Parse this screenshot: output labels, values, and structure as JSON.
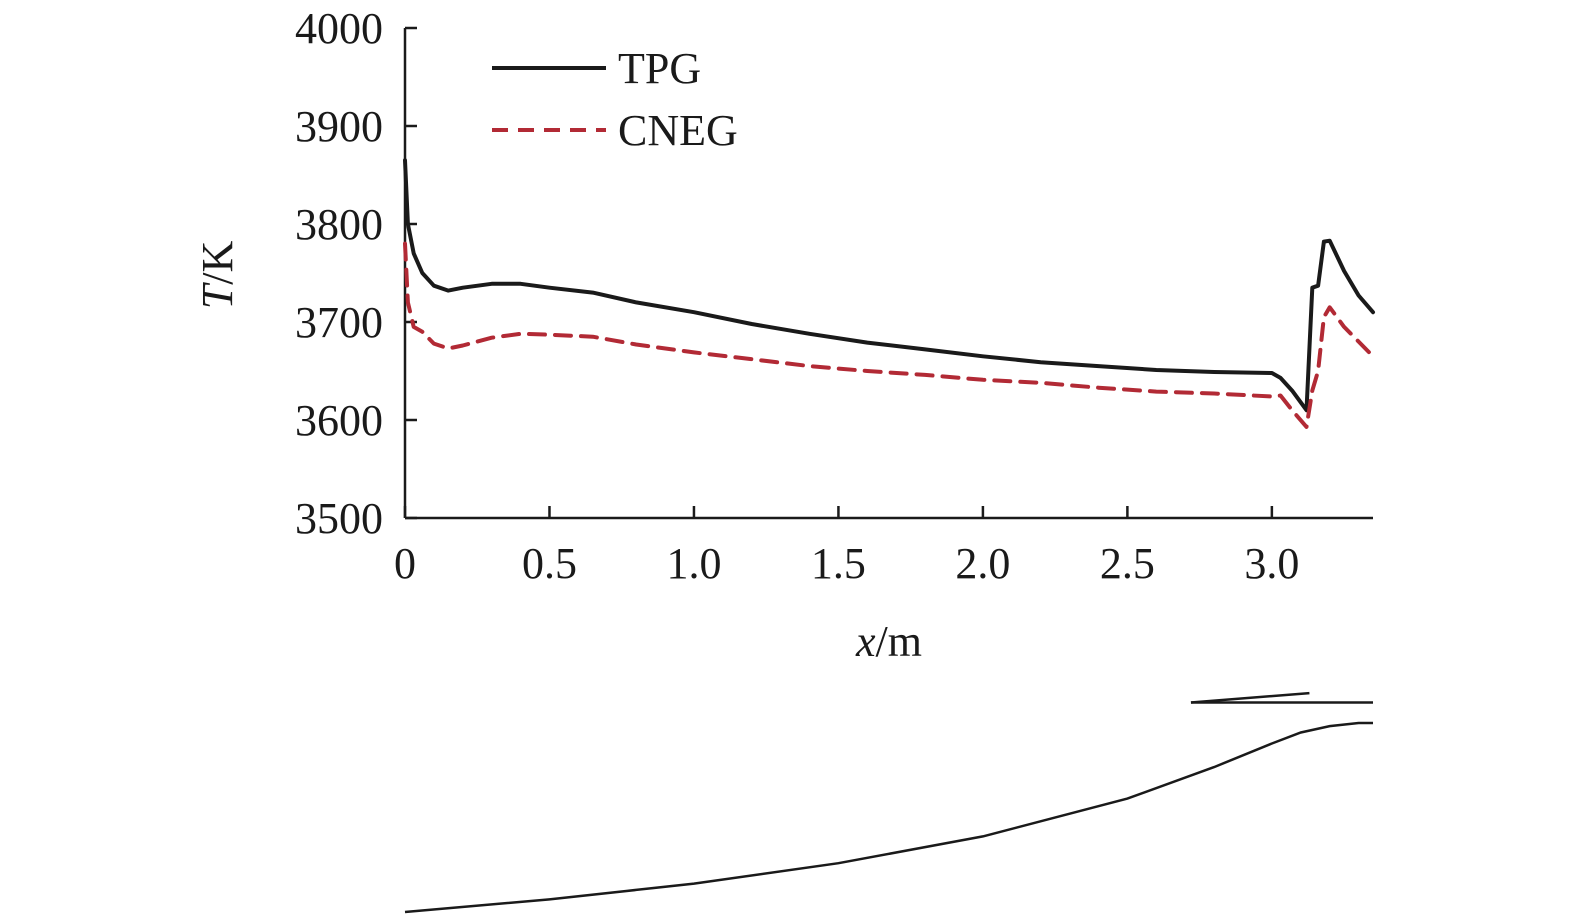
{
  "chart_data": {
    "type": "line",
    "title": "",
    "xlabel_italic": "x",
    "xlabel_unit": "/m",
    "ylabel_italic": "T",
    "ylabel_unit": "/K",
    "xlim": [
      0,
      3.35
    ],
    "ylim": [
      3500,
      4000
    ],
    "x_ticks": [
      0,
      0.5,
      1.0,
      1.5,
      2.0,
      2.5,
      3.0
    ],
    "x_tick_labels": [
      "0",
      "0.5",
      "1.0",
      "1.5",
      "2.0",
      "2.5",
      "3.0"
    ],
    "y_ticks": [
      3500,
      3600,
      3700,
      3800,
      3900,
      4000
    ],
    "y_tick_labels": [
      "3500",
      "3600",
      "3700",
      "3800",
      "3900",
      "4000"
    ],
    "grid": false,
    "legend_position": "top-left",
    "series": [
      {
        "name": "TPG",
        "color": "#1a1a1a",
        "dash": "solid",
        "x": [
          0,
          0.01,
          0.03,
          0.06,
          0.1,
          0.15,
          0.2,
          0.3,
          0.4,
          0.5,
          0.65,
          0.8,
          1.0,
          1.2,
          1.4,
          1.6,
          1.8,
          2.0,
          2.2,
          2.4,
          2.6,
          2.8,
          3.0,
          3.03,
          3.07,
          3.12,
          3.14,
          3.16,
          3.18,
          3.2,
          3.25,
          3.3,
          3.35
        ],
        "values": [
          3865,
          3800,
          3770,
          3750,
          3737,
          3732,
          3735,
          3739,
          3739,
          3735,
          3730,
          3720,
          3710,
          3698,
          3688,
          3679,
          3672,
          3665,
          3659,
          3655,
          3651,
          3649,
          3648,
          3643,
          3630,
          3610,
          3735,
          3737,
          3782,
          3783,
          3752,
          3727,
          3710
        ]
      },
      {
        "name": "CNEG",
        "color": "#b22a35",
        "dash": "dashed",
        "x": [
          0,
          0.01,
          0.03,
          0.06,
          0.1,
          0.15,
          0.2,
          0.3,
          0.4,
          0.5,
          0.65,
          0.8,
          1.0,
          1.2,
          1.4,
          1.6,
          1.8,
          2.0,
          2.2,
          2.4,
          2.6,
          2.8,
          3.0,
          3.03,
          3.07,
          3.12,
          3.14,
          3.16,
          3.18,
          3.2,
          3.25,
          3.3,
          3.35
        ],
        "values": [
          3780,
          3720,
          3695,
          3690,
          3678,
          3673,
          3676,
          3684,
          3688,
          3687,
          3685,
          3677,
          3669,
          3662,
          3655,
          3650,
          3646,
          3641,
          3638,
          3633,
          3629,
          3627,
          3624,
          3625,
          3610,
          3593,
          3630,
          3650,
          3705,
          3715,
          3695,
          3680,
          3665
        ]
      }
    ],
    "geometry_sketch": {
      "x": [
        0,
        0.5,
        1.0,
        1.5,
        2.0,
        2.5,
        2.8,
        3.0,
        3.1,
        3.2,
        3.3,
        3.35
      ],
      "r": [
        0,
        0.04,
        0.09,
        0.155,
        0.24,
        0.36,
        0.46,
        0.535,
        0.57,
        0.59,
        0.6,
        0.6
      ],
      "cowl_x": [
        2.72,
        3.13
      ],
      "cowl_r": [
        0.665,
        0.695
      ],
      "cowl_flat_x": [
        2.72,
        3.35
      ],
      "cowl_flat_r": 0.665
    }
  }
}
